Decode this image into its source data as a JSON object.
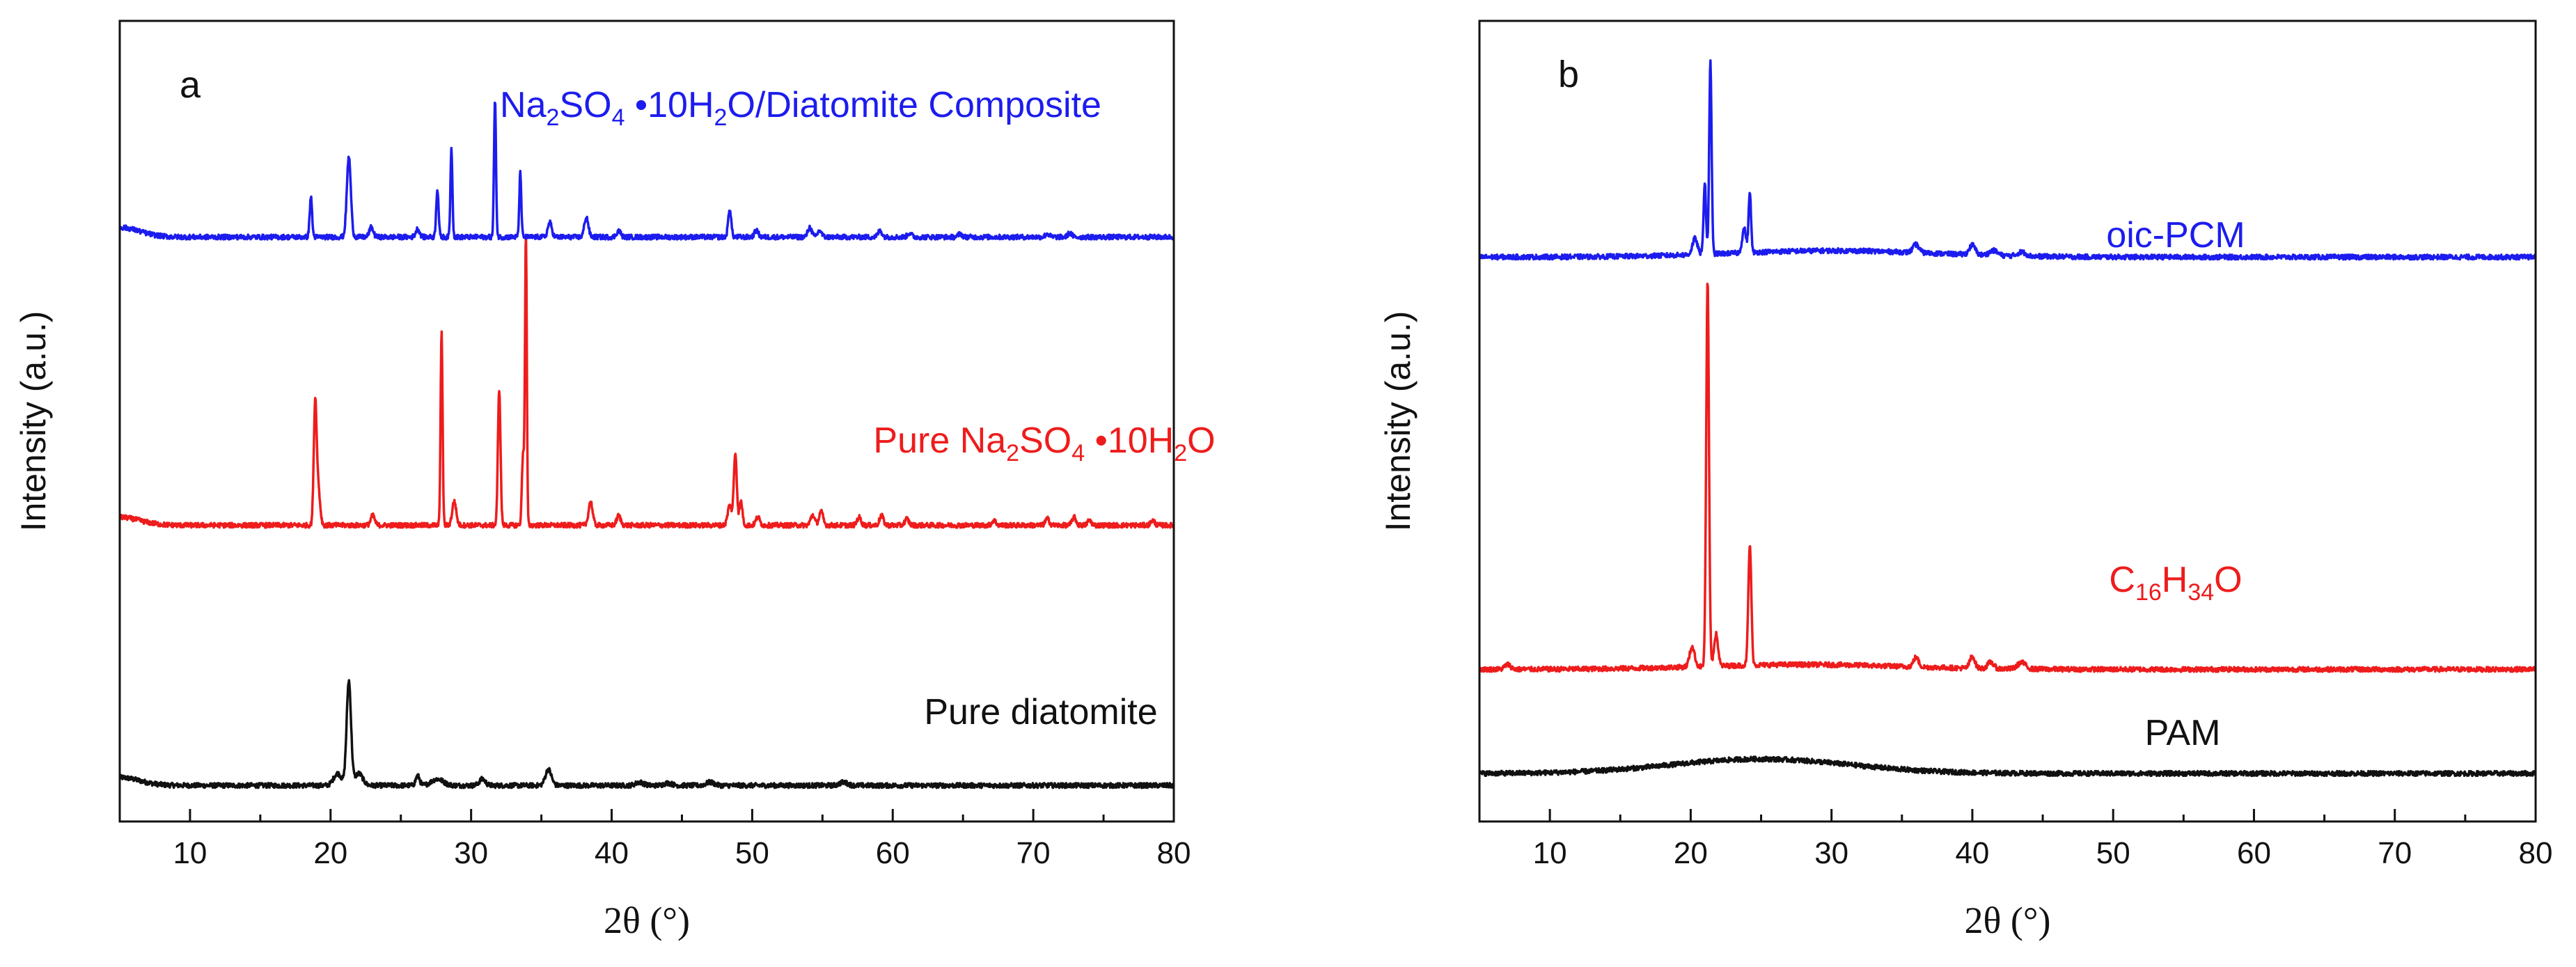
{
  "chart_data": [
    {
      "type": "line",
      "panel": "a",
      "xlabel": "2θ (°)",
      "ylabel": "Intensity (a.u.)",
      "xlim": [
        5,
        80
      ],
      "xticks": [
        10,
        20,
        30,
        40,
        50,
        60,
        70,
        80
      ],
      "ylim": [
        0,
        1
      ],
      "yticks": "none",
      "series": [
        {
          "name": "Pure diatomite",
          "label_parts": [
            "Pure diatomite"
          ],
          "color": "#111111",
          "baseline": 0.045,
          "start_rise": {
            "amp": 0.01,
            "center": 5,
            "width": 2
          },
          "peaks": [
            [
              20.5,
              0.015,
              0.4
            ],
            [
              21.3,
              0.13,
              0.22
            ],
            [
              22.0,
              0.015,
              0.4
            ],
            [
              26.2,
              0.012,
              0.2
            ],
            [
              27.6,
              0.008,
              0.6
            ],
            [
              30.8,
              0.008,
              0.3
            ],
            [
              35.5,
              0.02,
              0.3
            ],
            [
              42,
              0.004,
              0.4
            ],
            [
              44,
              0.003,
              0.4
            ],
            [
              47,
              0.004,
              0.4
            ],
            [
              56.5,
              0.004,
              0.4
            ]
          ]
        },
        {
          "name": "Pure Na2SO4 •10H2O",
          "label_parts": [
            "Pure Na",
            "2",
            "SO",
            "4",
            " •10H",
            "2",
            "O"
          ],
          "color": "#ee1c1c",
          "baseline": 0.37,
          "start_rise": {
            "amp": 0.01,
            "center": 5,
            "width": 2
          },
          "peaks": [
            [
              18.9,
              0.14,
              0.14
            ],
            [
              19.1,
              0.05,
              0.2
            ],
            [
              23.0,
              0.012,
              0.2
            ],
            [
              27.9,
              0.24,
              0.1
            ],
            [
              28.8,
              0.03,
              0.2
            ],
            [
              32.0,
              0.17,
              0.13
            ],
            [
              33.7,
              0.09,
              0.12
            ],
            [
              33.9,
              0.36,
              0.09
            ],
            [
              38.5,
              0.03,
              0.2
            ],
            [
              40.5,
              0.012,
              0.2
            ],
            [
              48.4,
              0.025,
              0.2
            ],
            [
              48.8,
              0.09,
              0.15
            ],
            [
              49.2,
              0.03,
              0.15
            ],
            [
              50.4,
              0.01,
              0.2
            ],
            [
              54.3,
              0.013,
              0.2
            ],
            [
              54.9,
              0.017,
              0.2
            ],
            [
              57.6,
              0.01,
              0.2
            ],
            [
              59.2,
              0.012,
              0.2
            ],
            [
              61,
              0.008,
              0.2
            ],
            [
              67.2,
              0.006,
              0.2
            ],
            [
              71,
              0.008,
              0.2
            ],
            [
              72.9,
              0.01,
              0.2
            ],
            [
              74,
              0.006,
              0.2
            ],
            [
              78.5,
              0.006,
              0.2
            ]
          ]
        },
        {
          "name": "Na2SO4 •10H2O/Diatomite Composite",
          "label_parts": [
            "Na",
            "2",
            "SO",
            "4",
            " •10H",
            "2",
            "O/Diatomite Composite"
          ],
          "color": "#1c1cee",
          "baseline": 0.73,
          "start_rise": {
            "amp": 0.012,
            "center": 5,
            "width": 2
          },
          "peaks": [
            [
              18.6,
              0.05,
              0.12
            ],
            [
              21.3,
              0.1,
              0.2
            ],
            [
              22.9,
              0.012,
              0.2
            ],
            [
              26.2,
              0.01,
              0.2
            ],
            [
              27.6,
              0.06,
              0.12
            ],
            [
              28.6,
              0.11,
              0.1
            ],
            [
              31.7,
              0.17,
              0.1
            ],
            [
              33.5,
              0.08,
              0.1
            ],
            [
              35.6,
              0.018,
              0.2
            ],
            [
              38.2,
              0.025,
              0.2
            ],
            [
              40.5,
              0.008,
              0.2
            ],
            [
              48.4,
              0.035,
              0.15
            ],
            [
              50.3,
              0.008,
              0.2
            ],
            [
              54.1,
              0.012,
              0.2
            ],
            [
              54.8,
              0.008,
              0.2
            ],
            [
              59.1,
              0.008,
              0.2
            ],
            [
              61.2,
              0.005,
              0.2
            ],
            [
              64.8,
              0.004,
              0.2
            ],
            [
              71,
              0.004,
              0.2
            ],
            [
              72.6,
              0.005,
              0.2
            ]
          ]
        }
      ]
    },
    {
      "type": "line",
      "panel": "b",
      "xlabel": "2θ (°)",
      "ylabel": "Intensity (a.u.)",
      "xlim": [
        5,
        80
      ],
      "xticks": [
        10,
        20,
        30,
        40,
        50,
        60,
        70,
        80
      ],
      "ylim": [
        0,
        1
      ],
      "yticks": "none",
      "series": [
        {
          "name": "PAM",
          "label_parts": [
            "PAM"
          ],
          "color": "#111111",
          "baseline": 0.06,
          "humps": [
            [
              25,
              0.018,
              9
            ]
          ],
          "peaks": []
        },
        {
          "name": "C16H34O",
          "label_parts": [
            "C",
            "16",
            "H",
            "34",
            "O"
          ],
          "color": "#ee1c1c",
          "baseline": 0.19,
          "humps": [
            [
              28,
              0.006,
              10
            ]
          ],
          "peaks": [
            [
              7,
              0.006,
              0.3
            ],
            [
              20.1,
              0.025,
              0.25
            ],
            [
              21.2,
              0.48,
              0.14
            ],
            [
              21.8,
              0.04,
              0.2
            ],
            [
              24.2,
              0.15,
              0.15
            ],
            [
              36,
              0.012,
              0.25
            ],
            [
              40,
              0.015,
              0.25
            ],
            [
              41.3,
              0.008,
              0.3
            ],
            [
              43.5,
              0.008,
              0.4
            ]
          ]
        },
        {
          "name": "oic-PCM",
          "label_parts": [
            "oic-PCM"
          ],
          "color": "#1c1cee",
          "baseline": 0.705,
          "humps": [
            [
              30,
              0.008,
              10
            ]
          ],
          "peaks": [
            [
              20.3,
              0.02,
              0.25
            ],
            [
              21.0,
              0.09,
              0.12
            ],
            [
              21.4,
              0.24,
              0.12
            ],
            [
              23.8,
              0.03,
              0.2
            ],
            [
              24.2,
              0.075,
              0.12
            ],
            [
              36,
              0.01,
              0.3
            ],
            [
              40,
              0.012,
              0.3
            ],
            [
              41.5,
              0.006,
              0.4
            ],
            [
              43.5,
              0.005,
              0.4
            ]
          ]
        }
      ]
    }
  ]
}
